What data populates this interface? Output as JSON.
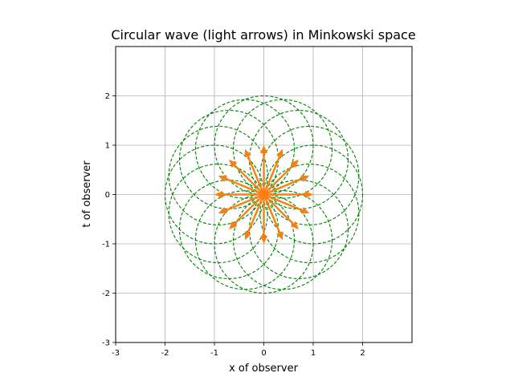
{
  "chart_data": {
    "type": "line",
    "title": "Circular wave (light arrows) in Minkowski space",
    "xlabel": "x of observer",
    "ylabel": "t of observer",
    "xlim": [
      -3,
      3
    ],
    "ylim": [
      -3,
      3
    ],
    "xticks": [
      -3,
      -2,
      -1,
      0,
      1,
      2
    ],
    "yticks": [
      -3,
      -2,
      -1,
      0,
      1,
      2
    ],
    "xtick_labels": [
      "-3",
      "-2",
      "-1",
      "0",
      "1",
      "2"
    ],
    "ytick_labels": [
      "-3",
      "-2",
      "-1",
      "0",
      "1",
      "2"
    ],
    "grid": true,
    "circles": {
      "count": 16,
      "center_radius": 1,
      "radius": 1,
      "style": "dashed",
      "color": "#008000"
    },
    "arrows": {
      "count": 16,
      "length": 1,
      "origin": [
        0,
        0
      ],
      "color": "#ff7f0e"
    }
  }
}
